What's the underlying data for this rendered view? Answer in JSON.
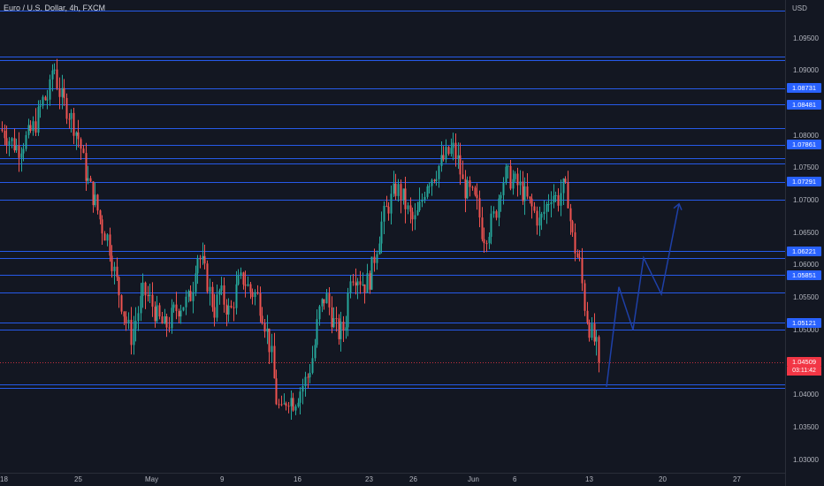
{
  "chart": {
    "title": "Euro / U.S. Dollar, 4h, FXCM",
    "currency": "USD",
    "price_ticks": [
      "1.09500",
      "1.09000",
      "1.08500",
      "1.08000",
      "1.07500",
      "1.07000",
      "1.06500",
      "1.06000",
      "1.05500",
      "1.05000",
      "1.04500",
      "1.04000",
      "1.03500",
      "1.03000"
    ],
    "time_ticks": [
      "18",
      "25",
      "May",
      "9",
      "16",
      "23",
      "26",
      "Jun",
      "6",
      "13",
      "20",
      "27"
    ],
    "level_tags": [
      "1.08731",
      "1.08481",
      "1.07861",
      "1.07291",
      "1.06221",
      "1.05851",
      "1.05121"
    ],
    "current_price": "1.04509",
    "countdown": "03:11:42"
  },
  "chart_data": {
    "type": "candlestick",
    "symbol": "Euro / U.S. Dollar",
    "timeframe": "4h",
    "source": "FXCM",
    "y_range": [
      1.0285,
      1.1
    ],
    "colors": {
      "up": "#26a69a",
      "down": "#ef5350",
      "levels": "#2962ff",
      "projection": "#1e40a8",
      "background": "#131722"
    },
    "horizontal_levels": [
      1.0993,
      1.0922,
      1.0916,
      1.08731,
      1.08481,
      1.0812,
      1.07861,
      1.0765,
      1.0757,
      1.07291,
      1.0701,
      1.06221,
      1.0611,
      1.05851,
      1.0559,
      1.05121,
      1.0501,
      1.0417,
      1.0411
    ],
    "current_price": 1.04509,
    "projection_path": [
      [
        1.0413,
        1.0567,
        1.0501,
        1.0612,
        1.0556,
        1.0695
      ]
    ],
    "anchors": [
      [
        0,
        1.081
      ],
      [
        5,
        1.0805
      ],
      [
        10,
        1.0795
      ],
      [
        20,
        1.078
      ],
      [
        32,
        1.08
      ],
      [
        40,
        1.082
      ],
      [
        48,
        1.0855
      ],
      [
        55,
        1.086
      ],
      [
        60,
        1.0915
      ],
      [
        65,
        1.0875
      ],
      [
        70,
        1.0855
      ],
      [
        78,
        1.0835
      ],
      [
        85,
        1.081
      ],
      [
        90,
        1.079
      ],
      [
        95,
        1.075
      ],
      [
        100,
        1.0725
      ],
      [
        108,
        1.0695
      ],
      [
        115,
        1.066
      ],
      [
        122,
        1.064
      ],
      [
        128,
        1.0595
      ],
      [
        135,
        1.0555
      ],
      [
        142,
        1.0515
      ],
      [
        148,
        1.049
      ],
      [
        155,
        1.0525
      ],
      [
        162,
        1.056
      ],
      [
        170,
        1.0545
      ],
      [
        178,
        1.052
      ],
      [
        185,
        1.0505
      ],
      [
        190,
        1.051
      ],
      [
        197,
        1.053
      ],
      [
        205,
        1.054
      ],
      [
        212,
        1.0545
      ],
      [
        217,
        1.056
      ],
      [
        222,
        1.062
      ],
      [
        228,
        1.0605
      ],
      [
        235,
        1.057
      ],
      [
        242,
        1.053
      ],
      [
        248,
        1.056
      ],
      [
        255,
        1.054
      ],
      [
        260,
        1.0525
      ],
      [
        268,
        1.057
      ],
      [
        275,
        1.058
      ],
      [
        283,
        1.056
      ],
      [
        290,
        1.0555
      ],
      [
        296,
        1.053
      ],
      [
        302,
        1.0495
      ],
      [
        307,
        1.046
      ],
      [
        312,
        1.0395
      ],
      [
        318,
        1.037
      ],
      [
        325,
        1.04
      ],
      [
        332,
        1.039
      ],
      [
        340,
        1.041
      ],
      [
        348,
        1.043
      ],
      [
        355,
        1.047
      ],
      [
        360,
        1.0525
      ],
      [
        368,
        1.0555
      ],
      [
        375,
        1.052
      ],
      [
        382,
        1.0495
      ],
      [
        390,
        1.0505
      ],
      [
        396,
        1.059
      ],
      [
        404,
        1.0585
      ],
      [
        412,
        1.057
      ],
      [
        418,
        1.058
      ],
      [
        425,
        1.0625
      ],
      [
        432,
        1.067
      ],
      [
        440,
        1.0695
      ],
      [
        448,
        1.072
      ],
      [
        455,
        1.0705
      ],
      [
        462,
        1.068
      ],
      [
        468,
        1.0665
      ],
      [
        475,
        1.069
      ],
      [
        482,
        1.073
      ],
      [
        490,
        1.074
      ],
      [
        497,
        1.0755
      ],
      [
        505,
        1.077
      ],
      [
        512,
        1.078
      ],
      [
        518,
        1.076
      ],
      [
        524,
        1.072
      ],
      [
        532,
        1.071
      ],
      [
        540,
        1.069
      ],
      [
        546,
        1.0645
      ],
      [
        552,
        1.0655
      ],
      [
        560,
        1.068
      ],
      [
        566,
        1.0725
      ],
      [
        572,
        1.074
      ],
      [
        580,
        1.073
      ],
      [
        588,
        1.072
      ],
      [
        596,
        1.07
      ],
      [
        603,
        1.0685
      ],
      [
        610,
        1.0665
      ],
      [
        617,
        1.069
      ],
      [
        624,
        1.0715
      ],
      [
        630,
        1.07
      ],
      [
        636,
        1.072
      ],
      [
        642,
        1.0705
      ],
      [
        646,
        1.065
      ],
      [
        651,
        1.062
      ],
      [
        656,
        1.06
      ],
      [
        660,
        1.0545
      ],
      [
        665,
        1.051
      ],
      [
        670,
        1.049
      ],
      [
        675,
        1.047
      ],
      [
        678,
        1.04509
      ]
    ]
  }
}
